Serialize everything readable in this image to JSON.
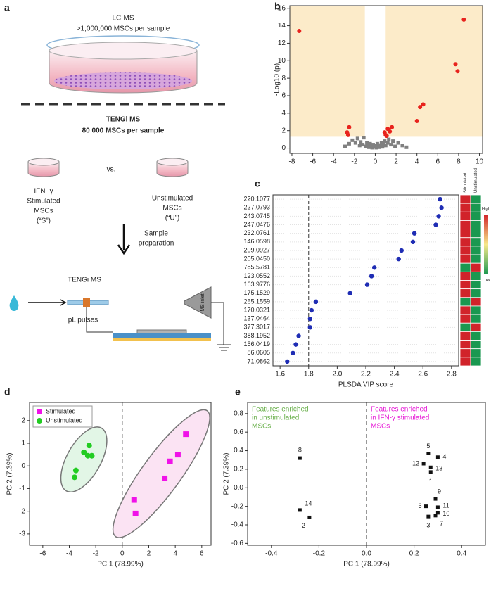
{
  "diagram": {
    "panel": "a",
    "lcms_title": "LC-MS",
    "lcms_sub": ">1,000,000 MSCs per sample",
    "tengi_title": "TENGi MS",
    "tengi_sub": "80 000 MSCs per sample",
    "stimulated": [
      "IFN- γ",
      "Stimulated",
      "MSCs",
      "(“S”)"
    ],
    "vs": "vs.",
    "unstimulated": [
      "Unstimulated",
      "MSCs",
      "(“U”)"
    ],
    "step": [
      "Sample",
      "preparation"
    ],
    "instrument": "TENGi MS",
    "pulses": "pL pulses",
    "inlet": "MS inlet"
  },
  "chart_data": [
    {
      "type": "scatter",
      "panel": "b",
      "ylabel": "-Log10 (p)",
      "xlim": [
        -8.2,
        10.3
      ],
      "xticks": [
        -8,
        -6,
        -4,
        -2,
        0,
        2,
        4,
        6,
        8,
        10
      ],
      "ylim": [
        -0.6,
        16.3
      ],
      "yticks": [
        0,
        2,
        4,
        6,
        8,
        10,
        12,
        14,
        16
      ],
      "threshold_x": [
        -1,
        1
      ],
      "threshold_y": 1.3,
      "shade_color": "#fcebc9",
      "series": [
        {
          "color": "#e8231d",
          "marker": "circle",
          "x": [
            -7.3,
            8.5,
            7.7,
            7.9,
            4.6,
            4.3,
            4.0,
            -2.5,
            -2.7,
            -2.6,
            1.0,
            1.2,
            1.6,
            1.4,
            0.9,
            1.1
          ],
          "values": [
            13.4,
            14.7,
            9.6,
            8.8,
            5.0,
            4.7,
            3.1,
            2.4,
            1.8,
            1.5,
            1.5,
            2.2,
            2.4,
            1.9,
            1.8,
            1.4
          ]
        },
        {
          "color": "#808080",
          "marker": "square",
          "x": [
            -2.5,
            -2.2,
            -1.9,
            -1.7,
            -1.5,
            -1.4,
            -1.2,
            -1.1,
            -0.9,
            -0.8,
            -0.7,
            -0.6,
            -0.5,
            -0.4,
            -0.3,
            -0.2,
            -0.1,
            0,
            0.1,
            0.2,
            0.3,
            0.4,
            0.5,
            0.6,
            0.7,
            0.8,
            0.9,
            1.0,
            1.2,
            1.3,
            1.5,
            1.7,
            1.9,
            2.2,
            2.6,
            -2.9,
            3.0
          ],
          "values": [
            0.5,
            0.9,
            0.6,
            1.1,
            0.3,
            0.7,
            0.4,
            1.2,
            0.2,
            0.6,
            0.35,
            0.1,
            0.5,
            0.25,
            0.05,
            0.4,
            0.15,
            0.3,
            0.05,
            0.5,
            0.2,
            0.1,
            0.35,
            0.6,
            0.15,
            0.45,
            0.8,
            0.3,
            0.6,
            1.0,
            0.4,
            0.8,
            0.2,
            0.6,
            0.3,
            0.2,
            0.1
          ]
        }
      ]
    },
    {
      "type": "dot",
      "panel": "c",
      "xlabel": "PLSDA VIP score",
      "color": "#1f2db4",
      "categories": [
        "220.1077",
        "227.0793",
        "243.0745",
        "247.0476",
        "232.0761",
        "146.0598",
        "209.0927",
        "205.0450",
        "785.5781",
        "123.0552",
        "163.9776",
        "175.1529",
        "265.1559",
        "170.0321",
        "137.0464",
        "377.3017",
        "388.1952",
        "156.0419",
        "86.0605",
        "71.0862"
      ],
      "values": [
        2.72,
        2.73,
        2.71,
        2.69,
        2.54,
        2.53,
        2.45,
        2.43,
        2.26,
        2.24,
        2.21,
        2.09,
        1.85,
        1.82,
        1.81,
        1.81,
        1.73,
        1.71,
        1.69,
        1.65
      ],
      "xlim": [
        1.55,
        2.85
      ],
      "xticks": [
        1.6,
        1.8,
        {
          "value": 2,
          "label": "2.0"
        },
        2.2,
        2.4,
        2.6,
        2.8
      ],
      "threshold": 1.8,
      "heatmap": {
        "columns": [
          "Stimulated",
          "Unstimulated"
        ],
        "colors": [
          [
            "#d1232a",
            "#1a9850"
          ],
          [
            "#d1232a",
            "#1a9850"
          ],
          [
            "#d1232a",
            "#1a9850"
          ],
          [
            "#d1232a",
            "#1a9850"
          ],
          [
            "#d1232a",
            "#1a9850"
          ],
          [
            "#d1232a",
            "#1a9850"
          ],
          [
            "#d1232a",
            "#1a9850"
          ],
          [
            "#d1232a",
            "#1a9850"
          ],
          [
            "#1a9850",
            "#d1232a"
          ],
          [
            "#d1232a",
            "#1a9850"
          ],
          [
            "#d1232a",
            "#1a9850"
          ],
          [
            "#d1232a",
            "#1a9850"
          ],
          [
            "#1a9850",
            "#d1232a"
          ],
          [
            "#d1232a",
            "#1a9850"
          ],
          [
            "#d1232a",
            "#1a9850"
          ],
          [
            "#1a9850",
            "#d1232a"
          ],
          [
            "#d1232a",
            "#1a9850"
          ],
          [
            "#d1232a",
            "#1a9850"
          ],
          [
            "#d1232a",
            "#1a9850"
          ],
          [
            "#d1232a",
            "#1a9850"
          ]
        ]
      },
      "colorbar": {
        "high": "High",
        "low": "Low"
      }
    },
    {
      "type": "scatter",
      "panel": "d",
      "xlabel": "PC 1 (78.99%)",
      "ylabel": "PC 2 (7.39%)",
      "xlim": [
        -7,
        6.7
      ],
      "xticks": [
        -6,
        -4,
        -2,
        0,
        2,
        4,
        6
      ],
      "ylim": [
        -3.5,
        2.8
      ],
      "yticks": [
        -3,
        -2,
        -1,
        0,
        1,
        2
      ],
      "legend": "upper left",
      "ellipses": true,
      "series": [
        {
          "name": "Stimulated",
          "color": "#f012e8",
          "marker": "square",
          "ellipse_color": "#fbe3f3",
          "x": [
            0.9,
            1.0,
            3.2,
            3.6,
            4.2,
            4.8
          ],
          "values": [
            -1.5,
            -2.1,
            -0.55,
            0.2,
            0.5,
            1.4
          ]
        },
        {
          "name": "Unstimulated",
          "color": "#22cc22",
          "marker": "circle",
          "ellipse_color": "#e2f6e6",
          "x": [
            -2.9,
            -2.5,
            -2.6,
            -2.3,
            -3.5,
            -3.6
          ],
          "values": [
            0.6,
            0.9,
            0.45,
            0.45,
            -0.2,
            -0.5
          ]
        }
      ]
    },
    {
      "type": "scatter",
      "panel": "e",
      "xlabel": "PC 1 (78.99%)",
      "ylabel": "PC 2 (7.39%)",
      "xlim": [
        -0.5,
        0.5
      ],
      "xticks": [
        -0.4,
        -0.2,
        {
          "value": 0,
          "label": "0.0"
        },
        0.2,
        0.4
      ],
      "ylim": [
        -0.62,
        0.92
      ],
      "yticks": [
        -0.6,
        -0.4,
        -0.2,
        {
          "value": 0,
          "label": "0.0"
        },
        0.2,
        0.4,
        0.6,
        0.8
      ],
      "annotations": [
        {
          "lines": [
            "Features enriched",
            "in unstimulated",
            "MSCs"
          ],
          "color": "#6ab04c"
        },
        {
          "lines": [
            "Features enriched",
            "in IFN-γ stimulated",
            "MSCs"
          ],
          "color": "#e619d6"
        }
      ],
      "series": [
        {
          "color": "#111111",
          "marker": "square",
          "labels": [
            "1",
            "2",
            "3",
            "4",
            "5",
            "6",
            "7",
            "8",
            "9",
            "10",
            "11",
            "12",
            "13",
            "14"
          ],
          "x": [
            0.27,
            -0.24,
            0.26,
            0.3,
            0.26,
            0.25,
            0.29,
            -0.28,
            0.29,
            0.3,
            0.3,
            0.24,
            0.27,
            -0.28
          ],
          "values": [
            0.17,
            -0.32,
            -0.31,
            0.33,
            0.37,
            -0.2,
            -0.3,
            0.32,
            -0.12,
            -0.27,
            -0.21,
            0.26,
            0.22,
            -0.24
          ]
        }
      ]
    }
  ]
}
